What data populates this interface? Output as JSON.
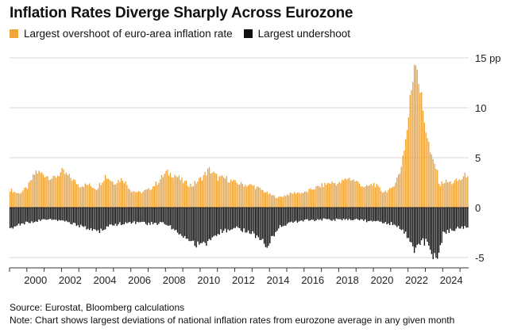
{
  "title": "Inflation Rates Diverge Sharply Across Eurozone",
  "colors": {
    "overshoot": "#f0a53a",
    "undershoot": "#111111",
    "grid": "#d6d6d6",
    "axis": "#333333"
  },
  "source": "Source: Eurostat, Bloomberg calculations",
  "note": "Note: Chart shows largest deviations of national inflation rates from eurozone average in any given month",
  "chart_data": {
    "type": "bar",
    "x_range": [
      "1999-01",
      "2025-06"
    ],
    "ylim": [
      -6,
      16
    ],
    "y_ticks": [
      15,
      10,
      5,
      0,
      -5
    ],
    "y_tick_labels": [
      "15 pp",
      "10",
      "5",
      "0",
      "-5"
    ],
    "x_tick_labels": [
      "2000",
      "2002",
      "2004",
      "2006",
      "2008",
      "2010",
      "2012",
      "2014",
      "2016",
      "2018",
      "2020",
      "2022",
      "2024"
    ],
    "grid": true,
    "legend_position": "top-left",
    "series": [
      {
        "name": "Largest overshoot of euro-area inflation rate",
        "color": "#f0a53a",
        "sampling": "monthly, interpolated between these anchor points (year, value)",
        "points": [
          [
            1999.0,
            1.8
          ],
          [
            1999.5,
            1.4
          ],
          [
            2000.0,
            2.0
          ],
          [
            2000.5,
            3.6
          ],
          [
            2001.0,
            3.3
          ],
          [
            2001.5,
            2.9
          ],
          [
            2002.0,
            3.6
          ],
          [
            2002.5,
            3.0
          ],
          [
            2003.0,
            2.2
          ],
          [
            2003.5,
            2.3
          ],
          [
            2004.0,
            1.9
          ],
          [
            2004.5,
            3.2
          ],
          [
            2005.0,
            2.5
          ],
          [
            2005.5,
            2.9
          ],
          [
            2006.0,
            1.7
          ],
          [
            2006.5,
            1.5
          ],
          [
            2007.0,
            1.8
          ],
          [
            2007.5,
            2.5
          ],
          [
            2008.0,
            3.5
          ],
          [
            2008.5,
            3.3
          ],
          [
            2009.0,
            2.6
          ],
          [
            2009.5,
            2.2
          ],
          [
            2010.0,
            2.9
          ],
          [
            2010.5,
            3.8
          ],
          [
            2011.0,
            3.0
          ],
          [
            2011.5,
            2.9
          ],
          [
            2012.0,
            2.5
          ],
          [
            2012.5,
            2.3
          ],
          [
            2013.0,
            2.2
          ],
          [
            2013.5,
            1.8
          ],
          [
            2014.0,
            1.3
          ],
          [
            2014.5,
            1.0
          ],
          [
            2015.0,
            1.3
          ],
          [
            2015.5,
            1.5
          ],
          [
            2016.0,
            1.5
          ],
          [
            2016.5,
            1.9
          ],
          [
            2017.0,
            2.2
          ],
          [
            2017.5,
            2.5
          ],
          [
            2018.0,
            2.4
          ],
          [
            2018.5,
            3.0
          ],
          [
            2019.0,
            2.6
          ],
          [
            2019.5,
            2.0
          ],
          [
            2020.0,
            2.4
          ],
          [
            2020.5,
            1.6
          ],
          [
            2021.0,
            1.8
          ],
          [
            2021.5,
            3.5
          ],
          [
            2021.9,
            7.5
          ],
          [
            2022.2,
            12.5
          ],
          [
            2022.4,
            15.8
          ],
          [
            2022.55,
            13.5
          ],
          [
            2022.8,
            10.0
          ],
          [
            2023.0,
            8.0
          ],
          [
            2023.3,
            5.0
          ],
          [
            2023.6,
            4.0
          ],
          [
            2023.8,
            2.2
          ],
          [
            2024.0,
            2.6
          ],
          [
            2024.5,
            2.5
          ],
          [
            2025.0,
            2.8
          ],
          [
            2025.4,
            3.4
          ]
        ]
      },
      {
        "name": "Largest undershoot",
        "color": "#111111",
        "sampling": "monthly, interpolated between these anchor points (year, value)",
        "points": [
          [
            1999.0,
            -2.0
          ],
          [
            2000.0,
            -1.5
          ],
          [
            2001.0,
            -1.2
          ],
          [
            2002.0,
            -1.3
          ],
          [
            2003.0,
            -1.8
          ],
          [
            2004.0,
            -2.5
          ],
          [
            2004.5,
            -2.1
          ],
          [
            2005.0,
            -1.7
          ],
          [
            2006.0,
            -1.5
          ],
          [
            2007.0,
            -1.6
          ],
          [
            2008.0,
            -1.6
          ],
          [
            2008.8,
            -2.5
          ],
          [
            2009.5,
            -3.4
          ],
          [
            2010.0,
            -3.8
          ],
          [
            2010.5,
            -3.5
          ],
          [
            2011.0,
            -2.5
          ],
          [
            2012.0,
            -2.0
          ],
          [
            2013.0,
            -2.5
          ],
          [
            2013.8,
            -3.8
          ],
          [
            2014.5,
            -2.0
          ],
          [
            2015.0,
            -1.6
          ],
          [
            2016.0,
            -1.3
          ],
          [
            2017.0,
            -1.2
          ],
          [
            2018.0,
            -1.2
          ],
          [
            2019.0,
            -1.2
          ],
          [
            2020.0,
            -1.4
          ],
          [
            2021.0,
            -1.6
          ],
          [
            2021.5,
            -2.0
          ],
          [
            2022.0,
            -3.0
          ],
          [
            2022.4,
            -4.5
          ],
          [
            2022.7,
            -3.4
          ],
          [
            2023.0,
            -3.5
          ],
          [
            2023.4,
            -4.8
          ],
          [
            2023.7,
            -5.0
          ],
          [
            2024.0,
            -2.5
          ],
          [
            2024.5,
            -2.2
          ],
          [
            2025.0,
            -2.0
          ],
          [
            2025.4,
            -1.8
          ]
        ]
      }
    ]
  }
}
